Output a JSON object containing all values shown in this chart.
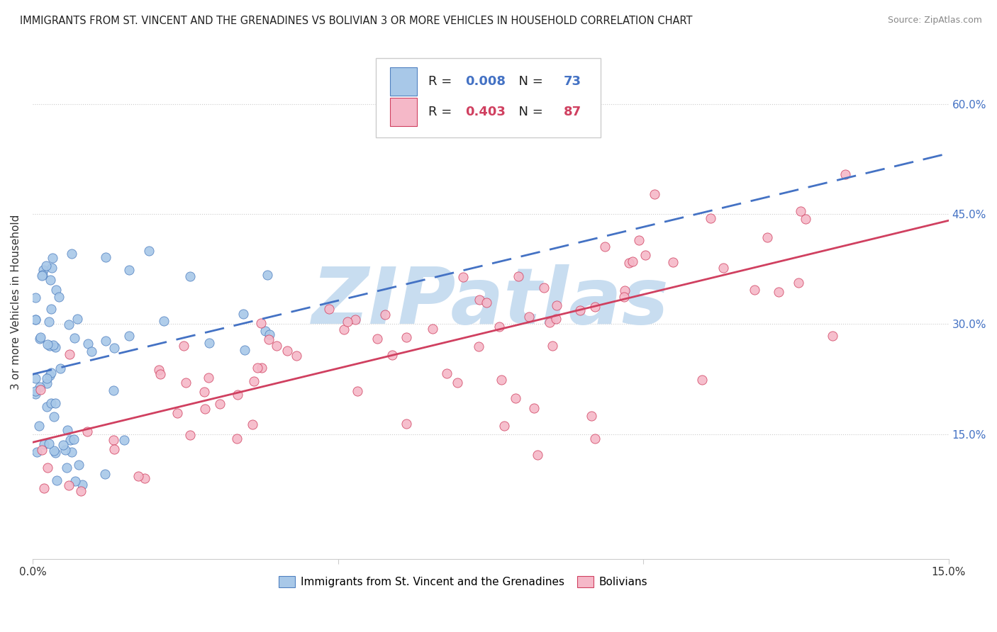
{
  "title": "IMMIGRANTS FROM ST. VINCENT AND THE GRENADINES VS BOLIVIAN 3 OR MORE VEHICLES IN HOUSEHOLD CORRELATION CHART",
  "source": "Source: ZipAtlas.com",
  "ylabel": "3 or more Vehicles in Household",
  "legend_label_blue": "Immigrants from St. Vincent and the Grenadines",
  "legend_label_pink": "Bolivians",
  "blue_R": "0.008",
  "blue_N": "73",
  "pink_R": "0.403",
  "pink_N": "87",
  "blue_color": "#a8c8e8",
  "pink_color": "#f5b8c8",
  "blue_edge_color": "#5080c0",
  "pink_edge_color": "#d04060",
  "blue_line_color": "#4472c4",
  "pink_line_color": "#d04060",
  "watermark": "ZIPatlas",
  "watermark_color": "#c8ddf0",
  "background_color": "#ffffff",
  "xlim": [
    0.0,
    0.15
  ],
  "ylim": [
    -0.02,
    0.68
  ],
  "yticks": [
    0.15,
    0.3,
    0.45,
    0.6
  ],
  "ytick_labels": [
    "15.0%",
    "30.0%",
    "45.0%",
    "60.0%"
  ],
  "xticks": [
    0.0,
    0.15
  ],
  "xtick_labels": [
    "0.0%",
    "15.0%"
  ]
}
